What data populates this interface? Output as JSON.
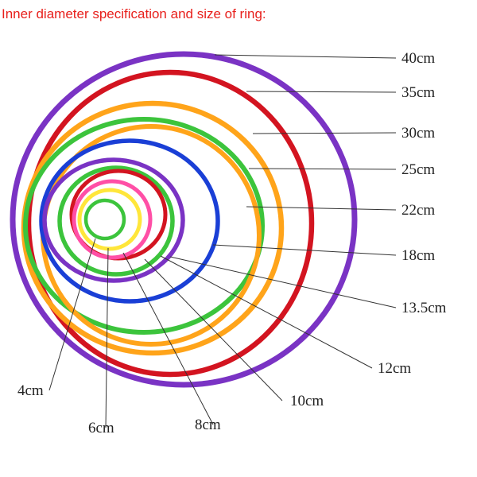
{
  "heading": "Inner diameter specification and size of ring:",
  "rings": [
    {
      "label": "40cm",
      "color": "#7a33c4",
      "color_name": "purple"
    },
    {
      "label": "35cm",
      "color": "#d31420",
      "color_name": "red"
    },
    {
      "label": "30cm",
      "color": "#ffa41a",
      "color_name": "orange"
    },
    {
      "label": "25cm",
      "color": "#3cc43c",
      "color_name": "green"
    },
    {
      "label": "22cm",
      "color": "#ffa41a",
      "color_name": "orange"
    },
    {
      "label": "18cm",
      "color": "#1a3fd6",
      "color_name": "blue"
    },
    {
      "label": "13.5cm",
      "color": "#7a33c4",
      "color_name": "purple"
    },
    {
      "label": "12cm",
      "color": "#3cc43c",
      "color_name": "green"
    },
    {
      "label": "10cm",
      "color": "#d31420",
      "color_name": "red"
    },
    {
      "label": "8cm",
      "color": "#ff4fa6",
      "color_name": "pink"
    },
    {
      "label": "6cm",
      "color": "#ffe63a",
      "color_name": "yellow"
    },
    {
      "label": "4cm",
      "color": "#3cc43c",
      "color_name": "green"
    }
  ]
}
